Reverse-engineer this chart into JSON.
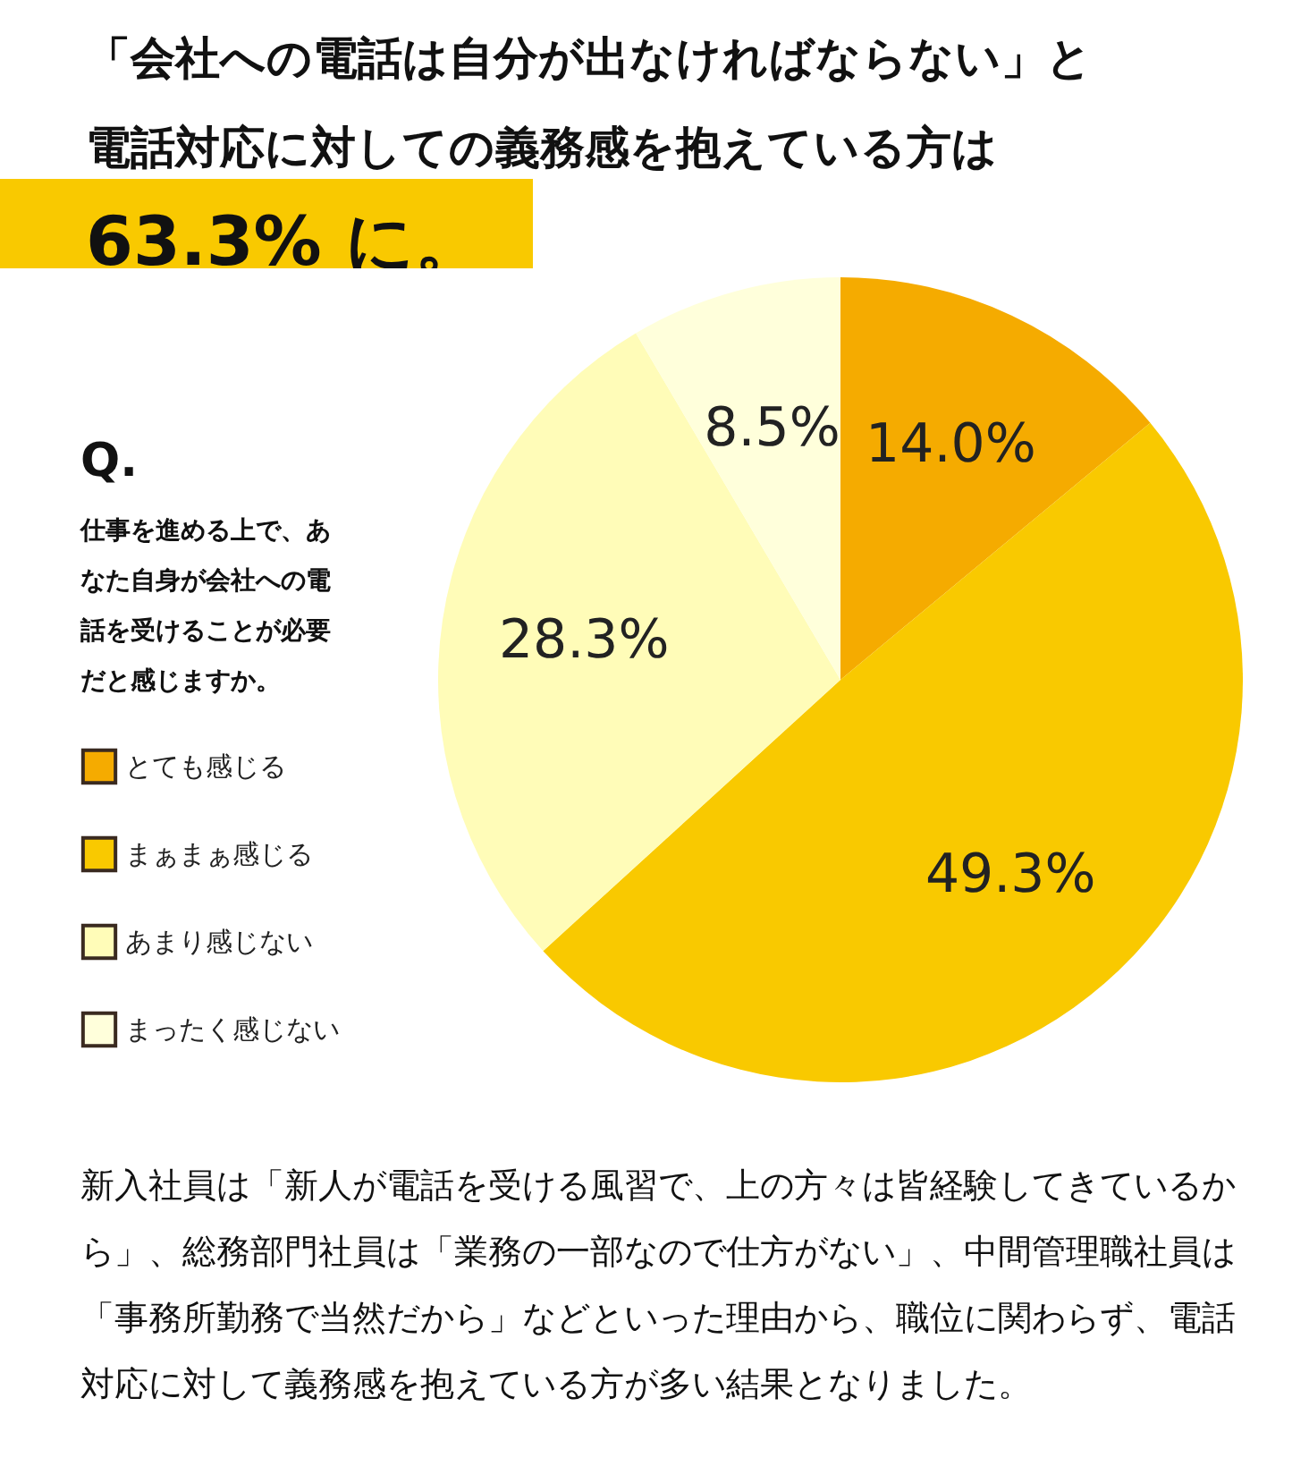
{
  "chart_data": {
    "type": "pie",
    "title": "「会社への電話は自分が出なければならない」と電話対応に対しての義務感を抱えている方は",
    "subtitle": "63.3% に。",
    "annotations": [
      "Q.",
      "仕事を進める上で、あなた自身が会社への電話を受けることが必要だと感じますか。",
      "新入社員は「新人が電話を受ける風習で、上の方々は皆経験してきているから」、総務部門社員は「業務の一部なので仕方がない」、中間管理職社員は「事務所勤務で当然だから」などといった理由から、職位に関わらず、電話対応に対して義務感を抱えている方が多い結果となりました。"
    ],
    "categories": [
      "とても感じる",
      "まぁまぁ感じる",
      "あまり感じない",
      "まったく感じない"
    ],
    "values": [
      14.0,
      49.3,
      28.3,
      8.5
    ],
    "colors": [
      "#f5ab00",
      "#f9c900",
      "#fffcb8",
      "#ffffdb"
    ],
    "value_labels": [
      "14.0%",
      "49.3%",
      "28.3%",
      "8.5%"
    ],
    "legend": "left"
  }
}
